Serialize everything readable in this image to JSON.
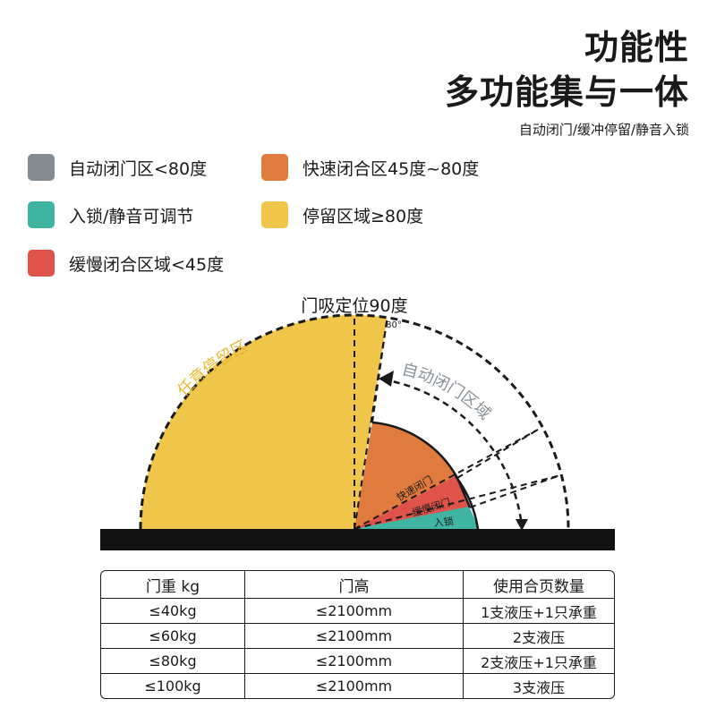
{
  "header": {
    "title_line1": "功能性",
    "title_line2": "多功能集与一体",
    "subtitle": "自动闭门/缓冲停留/静音入锁"
  },
  "legend": [
    {
      "label": "自动闭门区<80度",
      "color": "#848b91"
    },
    {
      "label": "快速闭合区45度~80度",
      "color": "#e07b3e"
    },
    {
      "label": "入锁/静音可调节",
      "color": "#3fb4a0"
    },
    {
      "label": "停留区域≥80度",
      "color": "#f0c64a"
    },
    {
      "label": "缓慢闭合区域<45度",
      "color": "#e0534a"
    }
  ],
  "diagram": {
    "top_label": "门吸定位90度",
    "angle_label": "80°",
    "hold_zone_label": "任意停留区",
    "auto_close_label": "自动闭门区域",
    "fast_close_label": "快速闭门",
    "slow_close_label": "缓慢闭门",
    "latch_label": "入锁",
    "colors": {
      "hold": "#f0c64a",
      "fast": "#e07b3e",
      "slow": "#e0534a",
      "latch": "#3fb4a0",
      "auto_text": "#8a9197",
      "floor": "#111111"
    }
  },
  "table": {
    "headers": [
      "门重 kg",
      "门高",
      "使用合页数量"
    ],
    "rows": [
      [
        "≤40kg",
        "≤2100mm",
        "1支液压+1只承重"
      ],
      [
        "≤60kg",
        "≤2100mm",
        "2支液压"
      ],
      [
        "≤80kg",
        "≤2100mm",
        "2支液压+1只承重"
      ],
      [
        "≤100kg",
        "≤2100mm",
        "3支液压"
      ]
    ]
  }
}
